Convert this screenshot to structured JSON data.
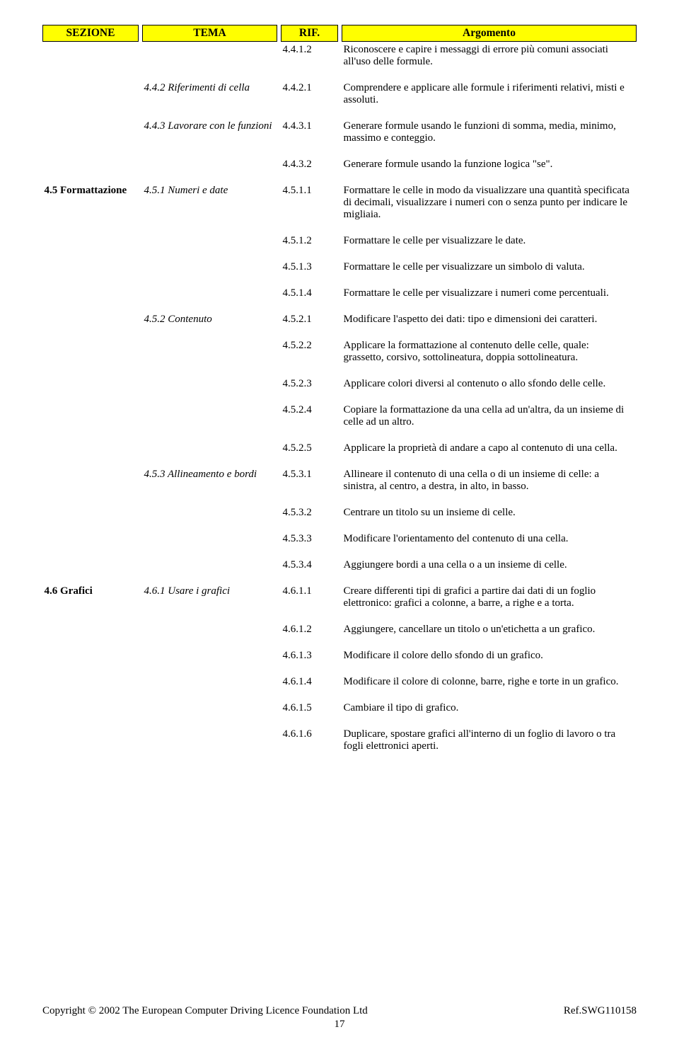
{
  "header": {
    "sezione": "SEZIONE",
    "tema": "TEMA",
    "rif": "RIF.",
    "argomento": "Argomento"
  },
  "header_style": {
    "bg": "#ffff00",
    "border": "#000000",
    "font_weight": "bold",
    "font_size_pt": 11
  },
  "colors": {
    "page_bg": "#ffffff",
    "text": "#000000"
  },
  "rows": [
    {
      "sezione": "",
      "tema": "",
      "rif": "4.4.1.2",
      "argomento": "Riconoscere e capire i messaggi di errore più comuni associati all'uso delle formule."
    },
    {
      "sezione": "",
      "tema": "4.4.2 Riferimenti di cella",
      "rif": "4.4.2.1",
      "argomento": "Comprendere e applicare alle formule i riferimenti relativi, misti e assoluti."
    },
    {
      "sezione": "",
      "tema": "4.4.3 Lavorare con le funzioni",
      "rif": "4.4.3.1",
      "argomento": "Generare formule usando le funzioni di somma, media, minimo, massimo e conteggio."
    },
    {
      "sezione": "",
      "tema": "",
      "rif": "4.4.3.2",
      "argomento": "Generare formule usando la funzione logica \"se\"."
    },
    {
      "sezione": "4.5 Formattazione",
      "tema": "4.5.1 Numeri e date",
      "rif": "4.5.1.1",
      "argomento": "Formattare le celle in modo da visualizzare una quantità specificata di decimali, visualizzare i numeri con o senza punto per indicare le migliaia."
    },
    {
      "sezione": "",
      "tema": "",
      "rif": "4.5.1.2",
      "argomento": "Formattare le celle per visualizzare le date."
    },
    {
      "sezione": "",
      "tema": "",
      "rif": "4.5.1.3",
      "argomento": "Formattare le celle per visualizzare un simbolo di valuta."
    },
    {
      "sezione": "",
      "tema": "",
      "rif": "4.5.1.4",
      "argomento": "Formattare le celle per visualizzare i numeri come percentuali."
    },
    {
      "sezione": "",
      "tema": "4.5.2 Contenuto",
      "rif": "4.5.2.1",
      "argomento": "Modificare l'aspetto dei dati: tipo e dimensioni dei caratteri."
    },
    {
      "sezione": "",
      "tema": "",
      "rif": "4.5.2.2",
      "argomento": "Applicare la formattazione al contenuto delle celle, quale: grassetto, corsivo, sottolineatura, doppia sottolineatura."
    },
    {
      "sezione": "",
      "tema": "",
      "rif": "4.5.2.3",
      "argomento": "Applicare colori diversi al contenuto o allo sfondo delle celle."
    },
    {
      "sezione": "",
      "tema": "",
      "rif": "4.5.2.4",
      "argomento": "Copiare la formattazione da una cella ad un'altra, da un insieme di celle ad un altro."
    },
    {
      "sezione": "",
      "tema": "",
      "rif": "4.5.2.5",
      "argomento": "Applicare la proprietà di andare a capo al contenuto di una cella."
    },
    {
      "sezione": "",
      "tema": "4.5.3 Allineamento e bordi",
      "rif": "4.5.3.1",
      "argomento": "Allineare il contenuto di una cella o di un insieme di celle: a sinistra, al centro, a destra, in alto, in basso."
    },
    {
      "sezione": "",
      "tema": "",
      "rif": "4.5.3.2",
      "argomento": "Centrare un titolo su un insieme di celle."
    },
    {
      "sezione": "",
      "tema": "",
      "rif": "4.5.3.3",
      "argomento": "Modificare l'orientamento del contenuto di una cella."
    },
    {
      "sezione": "",
      "tema": "",
      "rif": "4.5.3.4",
      "argomento": "Aggiungere bordi a una cella o a un insieme di celle."
    },
    {
      "sezione": "4.6 Grafici",
      "tema": "4.6.1 Usare i grafici",
      "rif": "4.6.1.1",
      "argomento": "Creare differenti tipi di grafici a partire dai dati di un foglio elettronico: grafici a colonne, a barre, a righe e a torta."
    },
    {
      "sezione": "",
      "tema": "",
      "rif": "4.6.1.2",
      "argomento": "Aggiungere, cancellare un titolo o un'etichetta a un grafico."
    },
    {
      "sezione": "",
      "tema": "",
      "rif": "4.6.1.3",
      "argomento": "Modificare il colore dello sfondo di un grafico."
    },
    {
      "sezione": "",
      "tema": "",
      "rif": "4.6.1.4",
      "argomento": "Modificare il colore di colonne, barre, righe e torte in un grafico."
    },
    {
      "sezione": "",
      "tema": "",
      "rif": "4.6.1.5",
      "argomento": "Cambiare il tipo di grafico."
    },
    {
      "sezione": "",
      "tema": "",
      "rif": "4.6.1.6",
      "argomento": "Duplicare, spostare grafici all'interno di un foglio di lavoro o tra fogli elettronici aperti."
    }
  ],
  "footer": {
    "left": "Copyright © 2002 The European Computer Driving Licence Foundation Ltd",
    "right": "Ref.SWG110158",
    "page": "17"
  }
}
